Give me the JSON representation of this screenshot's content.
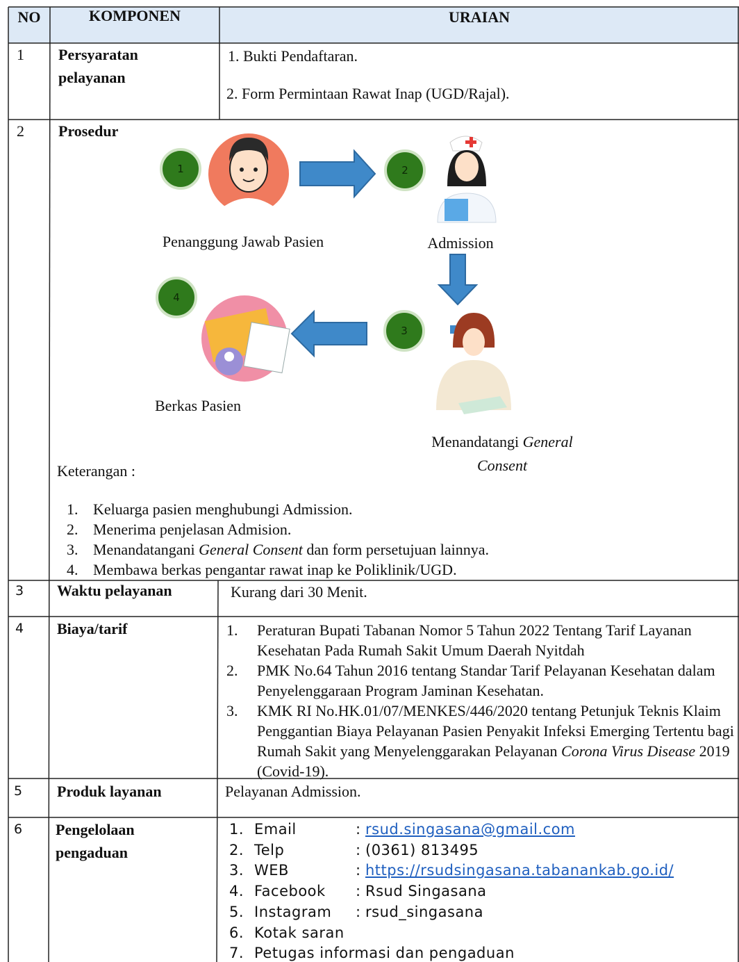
{
  "header": {
    "no": "NO",
    "komponen": "KOMPONEN",
    "uraian": "URAIAN"
  },
  "rows": [
    {
      "no": "1",
      "komponen": "Persyaratan pelayanan",
      "items": [
        "1. Bukti Pendaftaran.",
        "2. Form Permintaan Rawat Inap (UGD/Rajal)."
      ]
    },
    {
      "no": "2",
      "komponen": "Prosedur",
      "diagram": {
        "nodes": [
          {
            "number": "1",
            "label": "Penanggung Jawab Pasien"
          },
          {
            "number": "2",
            "label": "Admission"
          },
          {
            "number": "3",
            "label": [
              "Menandatangi ",
              "General Consent"
            ]
          },
          {
            "number": "4",
            "label": "Berkas Pasien"
          }
        ]
      },
      "note_title": "Keterangan :",
      "notes": [
        {
          "marker": "1.",
          "text": "Keluarga pasien menghubungi Admission."
        },
        {
          "marker": "2.",
          "text": "Menerima penjelasan Admision."
        },
        {
          "marker": "3.",
          "text": [
            "Menandatangani ",
            "General Consent",
            " dan form persetujuan lainnya."
          ]
        },
        {
          "marker": "4.",
          "text": "Membawa berkas pengantar rawat inap ke Poliklinik/UGD."
        }
      ]
    },
    {
      "no": "3",
      "komponen": "Waktu pelayanan",
      "text": "Kurang dari 30 Menit."
    },
    {
      "no": "4",
      "komponen": "Biaya/tarif",
      "items": [
        {
          "marker": "1.",
          "text": "Peraturan Bupati Tabanan Nomor 5 Tahun 2022 Tentang Tarif Layanan Kesehatan Pada Rumah Sakit Umum Daerah Nyitdah"
        },
        {
          "marker": "2.",
          "text": "PMK No.64 Tahun 2016 tentang Standar Tarif Pelayanan Kesehatan dalam Penyelenggaraan Program Jaminan Kesehatan."
        },
        {
          "marker": "3.",
          "text": [
            "KMK RI No.HK.01/07/MENKES/446/2020 tentang Petunjuk Teknis Klaim Penggantian Biaya Pelayanan Pasien Penyakit Infeksi Emerging Tertentu bagi Rumah Sakit yang Menyelenggarakan Pelayanan ",
            "Corona Virus Disease",
            " 2019 (Covid-19)."
          ]
        }
      ]
    },
    {
      "no": "5",
      "komponen": "Produk layanan",
      "text": "Pelayanan Admission."
    },
    {
      "no": "6",
      "komponen": "Pengelolaan pengaduan",
      "contacts": [
        {
          "marker": "1.",
          "label": "Email",
          "sep": ":",
          "value": "rsud.singasana@gmail.com"
        },
        {
          "marker": "2.",
          "label": "Telp",
          "sep": ":",
          "value": "(0361) 813495"
        },
        {
          "marker": "3.",
          "label": "WEB",
          "sep": ":",
          "value": "https://rsudsingasana.tabanankab.go.id/"
        },
        {
          "marker": "4.",
          "label": "Facebook",
          "sep": ":",
          "value": "Rsud Singasana"
        },
        {
          "marker": "5.",
          "label": "Instagram",
          "sep": ":",
          "value": "rsud_singasana"
        },
        {
          "marker": "6.",
          "label": "Kotak saran"
        },
        {
          "marker": "7.",
          "label": "Petugas informasi dan pengaduan"
        }
      ]
    }
  ]
}
